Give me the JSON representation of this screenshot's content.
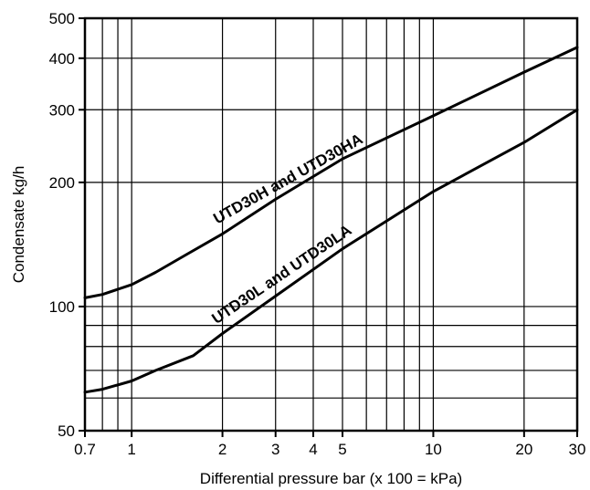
{
  "chart_data": {
    "type": "line",
    "x_scale": "log",
    "y_scale": "log",
    "xlim": [
      0.7,
      30
    ],
    "ylim": [
      50,
      500
    ],
    "xlabel": "Differential pressure bar (x 100 = kPa)",
    "ylabel": "Condensate kg/h",
    "x_ticks": [
      {
        "value": 0.7,
        "label": "0.7"
      },
      {
        "value": 1,
        "label": "1"
      },
      {
        "value": 2,
        "label": "2"
      },
      {
        "value": 3,
        "label": "3"
      },
      {
        "value": 4,
        "label": "4"
      },
      {
        "value": 5,
        "label": "5"
      },
      {
        "value": 10,
        "label": "10"
      },
      {
        "value": 20,
        "label": "20"
      },
      {
        "value": 30,
        "label": "30"
      }
    ],
    "y_ticks": [
      {
        "value": 50,
        "label": "50"
      },
      {
        "value": 100,
        "label": "100"
      },
      {
        "value": 200,
        "label": "200"
      },
      {
        "value": 300,
        "label": "300"
      },
      {
        "value": 400,
        "label": "400"
      },
      {
        "value": 500,
        "label": "500"
      }
    ],
    "x_grid": [
      0.7,
      0.8,
      0.9,
      1,
      2,
      3,
      4,
      5,
      6,
      7,
      8,
      9,
      10,
      20,
      30
    ],
    "y_grid": [
      50,
      60,
      70,
      80,
      90,
      100,
      200,
      300,
      400,
      500
    ],
    "grid": true,
    "series": [
      {
        "name": "UTD30H and UTD30HA",
        "x": [
          0.7,
          0.8,
          1.0,
          1.2,
          1.5,
          2.0,
          3.0,
          5.0,
          10,
          20,
          30
        ],
        "y": [
          105,
          107,
          113,
          121,
          133,
          150,
          182,
          228,
          290,
          370,
          425
        ]
      },
      {
        "name": "UTD30L and UTD30LA",
        "x": [
          0.7,
          0.8,
          1.0,
          1.2,
          1.6,
          2.0,
          3.0,
          5.0,
          10,
          20,
          30
        ],
        "y": [
          62,
          63,
          66,
          70,
          76,
          86,
          106,
          138,
          190,
          250,
          300
        ]
      }
    ]
  }
}
